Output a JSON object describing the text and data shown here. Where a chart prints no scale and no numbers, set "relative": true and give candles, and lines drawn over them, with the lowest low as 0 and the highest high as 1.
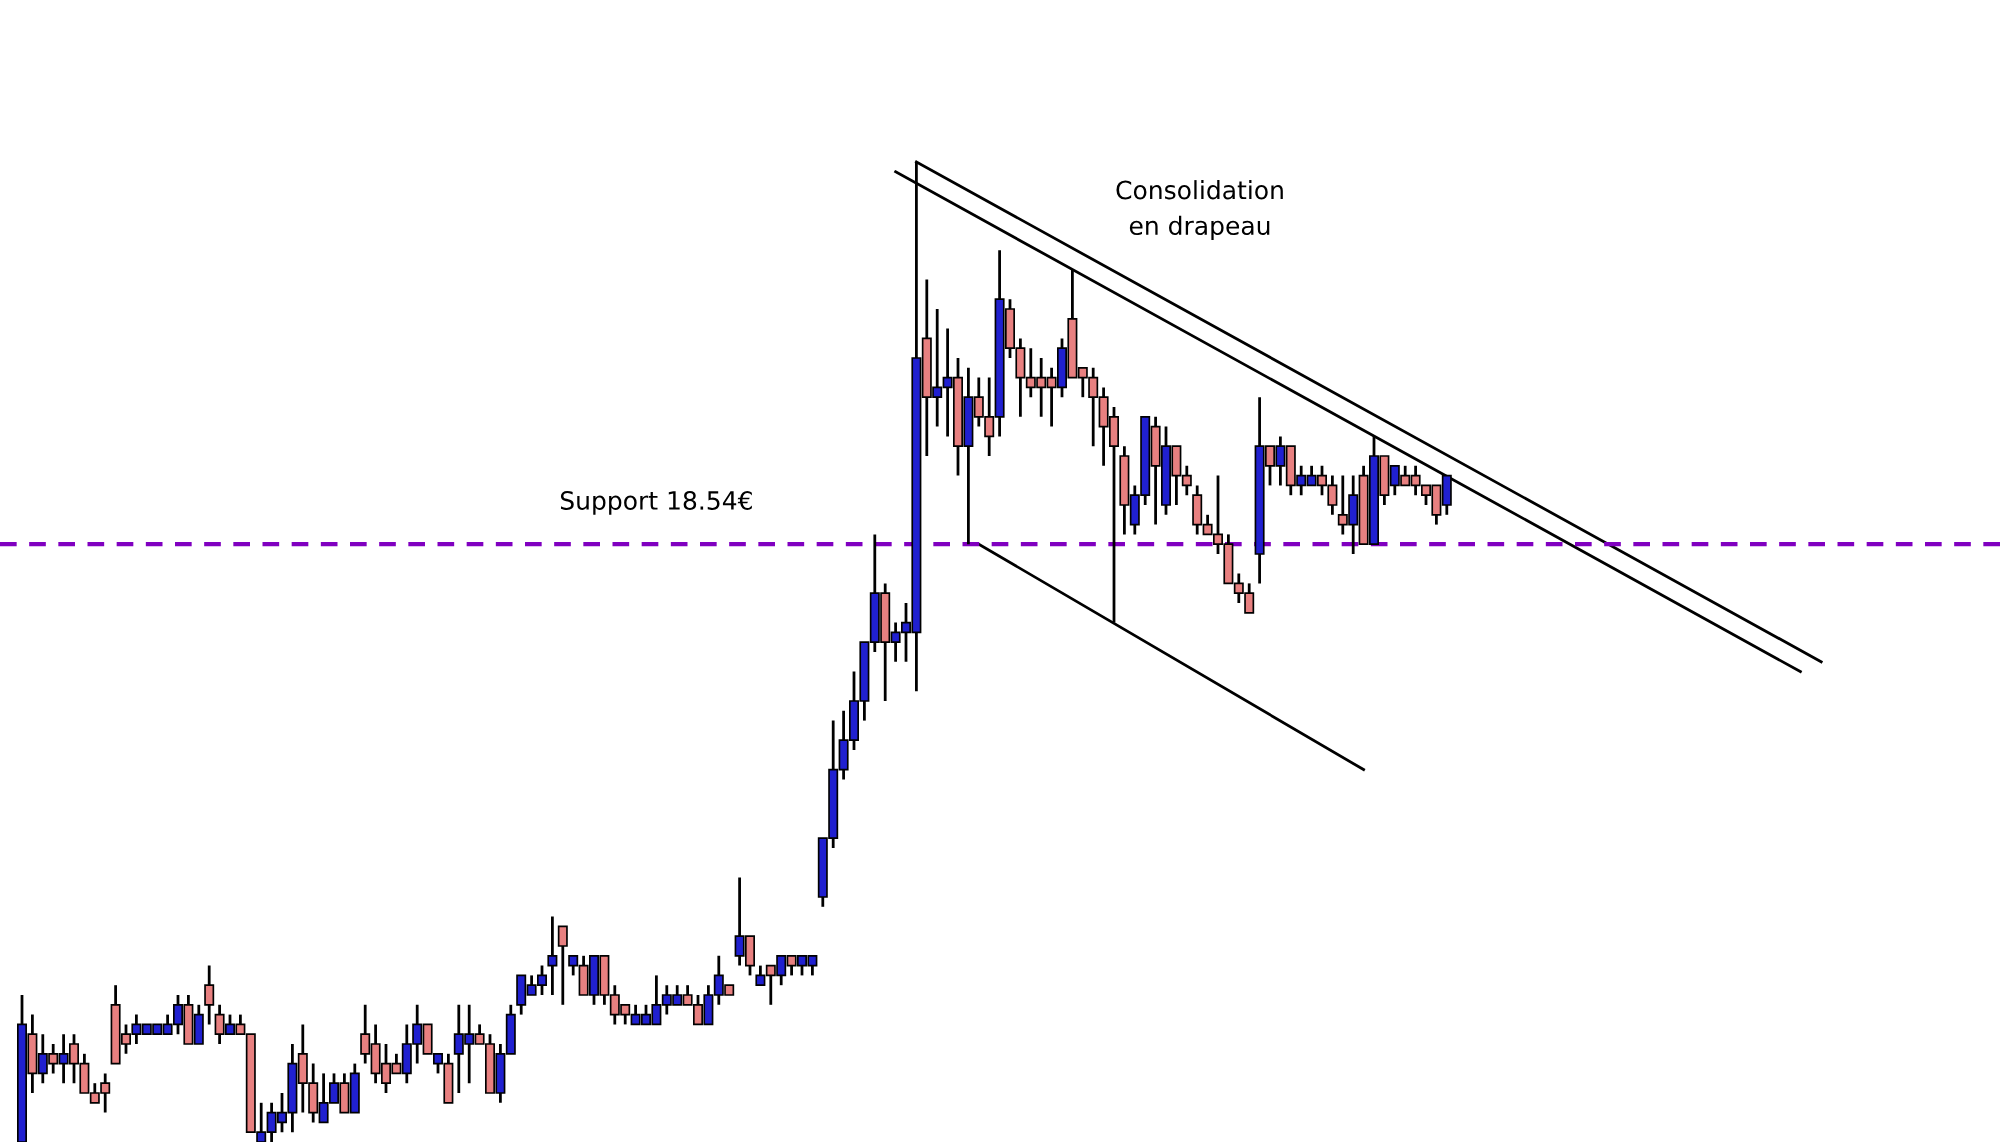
{
  "chart_data": {
    "type": "candlestick",
    "relative": true,
    "categories": [
      null,
      null,
      null,
      null,
      null,
      null,
      null,
      null,
      null,
      null,
      null,
      null,
      null,
      null,
      null,
      null,
      null,
      null,
      null,
      null,
      null,
      null,
      null,
      null,
      null,
      null,
      null,
      null,
      null,
      null,
      null,
      null,
      null,
      null,
      null,
      null,
      null,
      null,
      null,
      null,
      null,
      null,
      null,
      null,
      null,
      null,
      null,
      null,
      null,
      null,
      null,
      null,
      null,
      null,
      null,
      null,
      null,
      null,
      null,
      null,
      null,
      null,
      null,
      null,
      null,
      null,
      null,
      null,
      null,
      null,
      null,
      null,
      null,
      null,
      null,
      null,
      null,
      null,
      null,
      null,
      null,
      null,
      null,
      null,
      null,
      null,
      null,
      null,
      null,
      null,
      null,
      null,
      null,
      null,
      null,
      null,
      null,
      null,
      null,
      null,
      null,
      null,
      null,
      null,
      null,
      null,
      null,
      null,
      null,
      null,
      null,
      null,
      null,
      null,
      null,
      null,
      null,
      null,
      null,
      null,
      null,
      null,
      null,
      null,
      null,
      null,
      null,
      null,
      null,
      null,
      null,
      null,
      null,
      null,
      null,
      null,
      null,
      null,
      null,
      null,
      null,
      null,
      null,
      null,
      null,
      null,
      null,
      null,
      null,
      null,
      null,
      null,
      null,
      null,
      null,
      null,
      null,
      null,
      null,
      null,
      null,
      null,
      null,
      null,
      null,
      null,
      null,
      null,
      null,
      null,
      null,
      null,
      null,
      null,
      null
    ],
    "series": [
      {
        "ohlc": [
          [
            0.0,
            0.15,
            0.0,
            0.12
          ],
          [
            0.11,
            0.13,
            0.05,
            0.07
          ],
          [
            0.07,
            0.11,
            0.06,
            0.09
          ],
          [
            0.09,
            0.1,
            0.07,
            0.08
          ],
          [
            0.08,
            0.11,
            0.06,
            0.09
          ],
          [
            0.1,
            0.11,
            0.06,
            0.08
          ],
          [
            0.08,
            0.09,
            0.05,
            0.05
          ],
          [
            0.05,
            0.06,
            0.04,
            0.04
          ],
          [
            0.06,
            0.07,
            0.03,
            0.05
          ],
          [
            0.14,
            0.16,
            0.08,
            0.08
          ],
          [
            0.11,
            0.12,
            0.09,
            0.1
          ],
          [
            0.11,
            0.13,
            0.1,
            0.12
          ],
          [
            0.11,
            0.12,
            0.11,
            0.12
          ],
          [
            0.11,
            0.12,
            0.11,
            0.12
          ],
          [
            0.11,
            0.13,
            0.11,
            0.12
          ],
          [
            0.12,
            0.15,
            0.11,
            0.14
          ],
          [
            0.14,
            0.15,
            0.1,
            0.1
          ],
          [
            0.1,
            0.14,
            0.1,
            0.13
          ],
          [
            0.16,
            0.18,
            0.12,
            0.14
          ],
          [
            0.13,
            0.14,
            0.1,
            0.11
          ],
          [
            0.11,
            0.13,
            0.11,
            0.12
          ],
          [
            0.12,
            0.13,
            0.11,
            0.11
          ],
          [
            0.11,
            0.11,
            0.01,
            0.01
          ],
          [
            0.0,
            0.04,
            0.0,
            0.01
          ],
          [
            0.01,
            0.04,
            0.0,
            0.03
          ],
          [
            0.02,
            0.05,
            0.01,
            0.03
          ],
          [
            0.03,
            0.1,
            0.01,
            0.08
          ],
          [
            0.09,
            0.12,
            0.03,
            0.06
          ],
          [
            0.06,
            0.08,
            0.02,
            0.03
          ],
          [
            0.02,
            0.07,
            0.02,
            0.04
          ],
          [
            0.04,
            0.07,
            0.04,
            0.06
          ],
          [
            0.06,
            0.07,
            0.03,
            0.03
          ],
          [
            0.03,
            0.08,
            0.03,
            0.07
          ],
          [
            0.11,
            0.14,
            0.08,
            0.09
          ],
          [
            0.1,
            0.12,
            0.06,
            0.07
          ],
          [
            0.08,
            0.1,
            0.05,
            0.06
          ],
          [
            0.08,
            0.09,
            0.07,
            0.07
          ],
          [
            0.07,
            0.12,
            0.06,
            0.1
          ],
          [
            0.1,
            0.14,
            0.08,
            0.12
          ],
          [
            0.12,
            0.12,
            0.09,
            0.09
          ],
          [
            0.08,
            0.09,
            0.07,
            0.09
          ],
          [
            0.08,
            0.09,
            0.04,
            0.04
          ],
          [
            0.09,
            0.14,
            0.05,
            0.11
          ],
          [
            0.1,
            0.14,
            0.06,
            0.11
          ],
          [
            0.11,
            0.12,
            0.1,
            0.1
          ],
          [
            0.1,
            0.11,
            0.05,
            0.05
          ],
          [
            0.05,
            0.1,
            0.04,
            0.09
          ],
          [
            0.09,
            0.14,
            0.09,
            0.13
          ],
          [
            0.14,
            0.17,
            0.13,
            0.17
          ],
          [
            0.15,
            0.17,
            0.15,
            0.16
          ],
          [
            0.16,
            0.18,
            0.15,
            0.17
          ],
          [
            0.18,
            0.23,
            0.15,
            0.19
          ],
          [
            0.22,
            0.22,
            0.14,
            0.2
          ],
          [
            0.18,
            0.19,
            0.17,
            0.19
          ],
          [
            0.18,
            0.19,
            0.15,
            0.15
          ],
          [
            0.15,
            0.19,
            0.14,
            0.19
          ],
          [
            0.19,
            0.19,
            0.14,
            0.15
          ],
          [
            0.15,
            0.16,
            0.12,
            0.13
          ],
          [
            0.14,
            0.14,
            0.12,
            0.13
          ],
          [
            0.12,
            0.14,
            0.12,
            0.13
          ],
          [
            0.12,
            0.14,
            0.12,
            0.13
          ],
          [
            0.12,
            0.17,
            0.12,
            0.14
          ],
          [
            0.14,
            0.16,
            0.13,
            0.15
          ],
          [
            0.14,
            0.16,
            0.14,
            0.15
          ],
          [
            0.15,
            0.16,
            0.14,
            0.14
          ],
          [
            0.14,
            0.15,
            0.12,
            0.12
          ],
          [
            0.12,
            0.16,
            0.12,
            0.15
          ],
          [
            0.15,
            0.19,
            0.14,
            0.17
          ],
          [
            0.16,
            0.16,
            0.15,
            0.15
          ],
          [
            0.19,
            0.27,
            0.18,
            0.21
          ],
          [
            0.21,
            0.21,
            0.17,
            0.18
          ],
          [
            0.16,
            0.18,
            0.16,
            0.17
          ],
          [
            0.18,
            0.18,
            0.14,
            0.17
          ],
          [
            0.17,
            0.19,
            0.16,
            0.19
          ],
          [
            0.19,
            0.19,
            0.17,
            0.18
          ],
          [
            0.18,
            0.19,
            0.17,
            0.19
          ],
          [
            0.18,
            0.19,
            0.17,
            0.19
          ],
          [
            0.25,
            0.31,
            0.24,
            0.31
          ],
          [
            0.31,
            0.43,
            0.3,
            0.38
          ],
          [
            0.38,
            0.44,
            0.37,
            0.41
          ],
          [
            0.41,
            0.48,
            0.4,
            0.45
          ],
          [
            0.45,
            0.51,
            0.43,
            0.51
          ],
          [
            0.51,
            0.62,
            0.5,
            0.56
          ],
          [
            0.56,
            0.57,
            0.45,
            0.51
          ],
          [
            0.51,
            0.53,
            0.49,
            0.52
          ],
          [
            0.52,
            0.55,
            0.49,
            0.53
          ],
          [
            0.52,
            1.0,
            0.46,
            0.8
          ],
          [
            0.82,
            0.88,
            0.7,
            0.76
          ],
          [
            0.76,
            0.85,
            0.73,
            0.77
          ],
          [
            0.77,
            0.83,
            0.72,
            0.78
          ],
          [
            0.78,
            0.8,
            0.68,
            0.71
          ],
          [
            0.71,
            0.79,
            0.61,
            0.76
          ],
          [
            0.76,
            0.78,
            0.73,
            0.74
          ],
          [
            0.74,
            0.78,
            0.7,
            0.72
          ],
          [
            0.74,
            0.91,
            0.72,
            0.86
          ],
          [
            0.85,
            0.86,
            0.8,
            0.81
          ],
          [
            0.81,
            0.82,
            0.74,
            0.78
          ],
          [
            0.78,
            0.81,
            0.76,
            0.77
          ],
          [
            0.78,
            0.8,
            0.74,
            0.77
          ],
          [
            0.78,
            0.79,
            0.73,
            0.77
          ],
          [
            0.77,
            0.82,
            0.76,
            0.81
          ],
          [
            0.84,
            0.89,
            0.78,
            0.78
          ],
          [
            0.79,
            0.79,
            0.76,
            0.78
          ],
          [
            0.78,
            0.79,
            0.71,
            0.76
          ],
          [
            0.76,
            0.77,
            0.69,
            0.73
          ],
          [
            0.74,
            0.75,
            0.53,
            0.71
          ],
          [
            0.7,
            0.71,
            0.62,
            0.65
          ],
          [
            0.63,
            0.67,
            0.62,
            0.66
          ],
          [
            0.66,
            0.74,
            0.65,
            0.74
          ],
          [
            0.73,
            0.74,
            0.63,
            0.69
          ],
          [
            0.65,
            0.73,
            0.64,
            0.71
          ],
          [
            0.71,
            0.71,
            0.65,
            0.68
          ],
          [
            0.68,
            0.69,
            0.66,
            0.67
          ],
          [
            0.66,
            0.67,
            0.62,
            0.63
          ],
          [
            0.63,
            0.64,
            0.62,
            0.62
          ],
          [
            0.62,
            0.68,
            0.6,
            0.61
          ],
          [
            0.61,
            0.62,
            0.57,
            0.57
          ],
          [
            0.57,
            0.58,
            0.55,
            0.56
          ],
          [
            0.56,
            0.57,
            0.54,
            0.54
          ],
          [
            0.6,
            0.76,
            0.57,
            0.71
          ],
          [
            0.71,
            0.71,
            0.67,
            0.69
          ],
          [
            0.69,
            0.72,
            0.67,
            0.71
          ],
          [
            0.71,
            0.71,
            0.66,
            0.67
          ],
          [
            0.67,
            0.69,
            0.66,
            0.68
          ],
          [
            0.67,
            0.69,
            0.67,
            0.68
          ],
          [
            0.68,
            0.69,
            0.66,
            0.67
          ],
          [
            0.67,
            0.68,
            0.64,
            0.65
          ],
          [
            0.64,
            0.68,
            0.62,
            0.63
          ],
          [
            0.63,
            0.68,
            0.6,
            0.66
          ],
          [
            0.68,
            0.69,
            0.61,
            0.61
          ],
          [
            0.61,
            0.72,
            0.61,
            0.7
          ],
          [
            0.7,
            0.7,
            0.65,
            0.66
          ],
          [
            0.67,
            0.69,
            0.66,
            0.69
          ],
          [
            0.68,
            0.69,
            0.67,
            0.67
          ],
          [
            0.68,
            0.69,
            0.66,
            0.67
          ],
          [
            0.67,
            0.67,
            0.65,
            0.66
          ],
          [
            0.67,
            0.67,
            0.63,
            0.64
          ],
          [
            0.65,
            0.68,
            0.64,
            0.68
          ],
          null,
          null,
          null,
          null,
          null,
          null,
          null,
          null,
          null,
          null,
          null,
          null,
          null,
          null,
          null,
          null,
          null,
          null,
          null,
          null,
          null,
          null,
          null,
          null,
          null,
          null,
          null,
          null,
          null,
          null,
          null,
          null,
          null,
          null,
          null,
          null,
          null
        ],
        "colors": [
          "#2020d0",
          "#e88080",
          "#2020d0",
          "#e88080",
          "#2020d0",
          "#e88080",
          "#e88080",
          "#e88080",
          "#e88080",
          "#e88080",
          "#e88080",
          "#2020d0",
          "#2020d0",
          "#2020d0",
          "#2020d0",
          "#2020d0",
          "#e88080",
          "#2020d0",
          "#e88080",
          "#e88080",
          "#2020d0",
          "#e88080",
          "#e88080",
          "#2020d0",
          "#2020d0",
          "#2020d0",
          "#2020d0",
          "#e88080",
          "#e88080",
          "#2020d0",
          "#2020d0",
          "#e88080",
          "#2020d0",
          "#e88080",
          "#e88080",
          "#e88080",
          "#e88080",
          "#2020d0",
          "#2020d0",
          "#e88080",
          "#2020d0",
          "#e88080",
          "#2020d0",
          "#2020d0",
          "#e88080",
          "#e88080",
          "#2020d0",
          "#2020d0",
          "#2020d0",
          "#2020d0",
          "#2020d0",
          "#2020d0",
          "#e88080",
          "#2020d0",
          "#e88080",
          "#2020d0",
          "#e88080",
          "#e88080",
          "#e88080",
          "#2020d0",
          "#2020d0",
          "#2020d0",
          "#2020d0",
          "#2020d0",
          "#e88080",
          "#e88080",
          "#2020d0",
          "#2020d0",
          "#e88080",
          "#2020d0",
          "#e88080",
          "#2020d0",
          "#e88080",
          "#2020d0",
          "#e88080",
          "#2020d0",
          "#2020d0",
          "#2020d0",
          "#2020d0",
          "#2020d0",
          "#2020d0",
          "#2020d0",
          "#2020d0",
          "#e88080",
          "#2020d0",
          "#2020d0",
          "#2020d0",
          "#e88080",
          "#2020d0",
          "#2020d0",
          "#e88080",
          "#2020d0",
          "#e88080",
          "#e88080",
          "#2020d0",
          "#e88080",
          "#e88080",
          "#e88080",
          "#e88080",
          "#e88080",
          "#2020d0",
          "#e88080",
          "#e88080",
          "#e88080",
          "#e88080",
          "#e88080",
          "#e88080",
          "#2020d0",
          "#2020d0",
          "#e88080",
          "#2020d0",
          "#e88080",
          "#e88080",
          "#e88080",
          "#e88080",
          "#e88080",
          "#e88080",
          "#e88080",
          "#e88080",
          "#2020d0",
          "#e88080",
          "#2020d0",
          "#e88080",
          "#2020d0",
          "#2020d0",
          "#e88080",
          "#e88080",
          "#e88080",
          "#2020d0",
          "#e88080",
          "#2020d0",
          "#e88080",
          "#2020d0",
          "#e88080",
          "#e88080",
          "#e88080",
          "#e88080",
          "#2020d0",
          null,
          null,
          null,
          null,
          null,
          null,
          null,
          null,
          null,
          null,
          null,
          null,
          null,
          null,
          null,
          null,
          null,
          null,
          null,
          null,
          null,
          null,
          null,
          null,
          null,
          null,
          null,
          null,
          null,
          null,
          null,
          null,
          null,
          null,
          null,
          null,
          null
        ]
      },
      {
        "type": "line",
        "color": "#000000",
        "values": [
          null,
          null,
          null,
          null,
          null,
          null,
          null,
          null,
          null,
          null,
          null,
          null,
          null,
          null,
          null,
          null,
          null,
          null,
          null,
          null,
          null,
          null,
          null,
          null,
          null,
          null,
          null,
          null,
          null,
          null,
          null,
          null,
          null,
          null,
          null,
          null,
          null,
          null,
          null,
          null,
          null,
          null,
          null,
          null,
          null,
          null,
          null,
          null,
          null,
          null,
          null,
          null,
          null,
          null,
          null,
          null,
          null,
          null,
          null,
          null,
          null,
          null,
          null,
          null,
          null,
          null,
          null,
          null,
          null,
          null,
          null,
          null,
          null,
          null,
          null,
          null,
          null,
          null,
          null,
          null,
          null,
          null,
          null,
          null,
          null,
          null,
          1.0,
          null,
          null,
          null,
          null,
          null,
          null,
          null,
          null,
          null,
          null,
          null,
          null,
          null,
          null,
          null,
          null,
          null,
          null,
          null,
          null,
          null,
          null,
          null,
          null,
          null,
          null,
          null,
          null,
          null,
          null,
          null,
          null,
          null,
          null,
          null,
          null,
          null,
          null,
          null,
          null,
          null,
          null,
          null,
          null,
          null,
          null,
          null,
          null,
          null,
          null,
          null,
          null,
          null,
          null,
          null,
          null,
          null,
          null,
          null,
          null,
          null,
          null,
          null,
          null,
          null,
          null,
          null,
          null,
          null,
          null,
          null,
          null,
          null,
          null,
          null,
          null,
          null,
          null,
          null,
          null,
          null,
          null,
          null,
          null,
          null,
          null,
          0.49,
          null
        ]
      },
      {
        "type": "line",
        "color": "#000000",
        "values": [
          null,
          null,
          null,
          null,
          null,
          null,
          null,
          null,
          null,
          null,
          null,
          null,
          null,
          null,
          null,
          null,
          null,
          null,
          null,
          null,
          null,
          null,
          null,
          null,
          null,
          null,
          null,
          null,
          null,
          null,
          null,
          null,
          null,
          null,
          null,
          null,
          null,
          null,
          null,
          null,
          null,
          null,
          null,
          null,
          null,
          null,
          null,
          null,
          null,
          null,
          null,
          null,
          null,
          null,
          null,
          null,
          null,
          null,
          null,
          null,
          null,
          null,
          null,
          null,
          null,
          null,
          null,
          null,
          null,
          null,
          null,
          null,
          null,
          null,
          null,
          null,
          null,
          null,
          null,
          null,
          null,
          null,
          null,
          null,
          0.99,
          null,
          null,
          null,
          null,
          null,
          null,
          null,
          null,
          null,
          null,
          null,
          null,
          null,
          null,
          null,
          null,
          null,
          null,
          null,
          null,
          null,
          null,
          null,
          null,
          null,
          null,
          null,
          null,
          null,
          null,
          null,
          null,
          null,
          null,
          null,
          null,
          null,
          null,
          null,
          null,
          null,
          null,
          null,
          null,
          null,
          null,
          null,
          null,
          null,
          null,
          null,
          null,
          null,
          null,
          null,
          null,
          null,
          null,
          null,
          null,
          null,
          null,
          null,
          null,
          null,
          null,
          null,
          null,
          null,
          null,
          null,
          null,
          null,
          null,
          null,
          null,
          null,
          null,
          null,
          null,
          null,
          null,
          null,
          null,
          null,
          null,
          0.48,
          null,
          null,
          null
        ]
      },
      {
        "type": "line",
        "color": "#000000",
        "values": [
          null,
          null,
          null,
          null,
          null,
          null,
          null,
          null,
          null,
          null,
          null,
          null,
          null,
          null,
          null,
          null,
          null,
          null,
          null,
          null,
          null,
          null,
          null,
          null,
          null,
          null,
          null,
          null,
          null,
          null,
          null,
          null,
          null,
          null,
          null,
          null,
          null,
          null,
          null,
          null,
          null,
          null,
          null,
          null,
          null,
          null,
          null,
          null,
          null,
          null,
          null,
          null,
          null,
          null,
          null,
          null,
          null,
          null,
          null,
          null,
          null,
          null,
          null,
          null,
          null,
          null,
          null,
          null,
          null,
          null,
          null,
          null,
          null,
          null,
          null,
          null,
          null,
          null,
          null,
          null,
          null,
          null,
          null,
          null,
          null,
          null,
          null,
          null,
          null,
          null,
          null,
          null,
          0.61,
          null,
          null,
          null,
          null,
          null,
          null,
          null,
          null,
          null,
          null,
          null,
          null,
          null,
          null,
          null,
          null,
          null,
          null,
          null,
          null,
          null,
          null,
          null,
          null,
          null,
          null,
          null,
          null,
          null,
          null,
          null,
          null,
          null,
          null,
          null,
          null,
          0.38,
          null,
          null,
          null,
          null,
          null,
          null,
          null,
          null,
          null,
          null,
          null,
          null,
          null,
          null,
          null,
          null,
          null,
          null,
          null,
          null,
          null,
          null,
          null,
          null,
          null,
          null,
          null,
          null,
          null,
          null,
          null,
          null,
          null,
          null,
          null,
          null,
          null,
          null,
          null,
          null,
          null,
          null,
          null,
          null,
          null
        ]
      }
    ],
    "ref_lines": [
      {
        "axis": "y",
        "value": 0.61,
        "label": "Support 18.54€",
        "color": "#8000c0",
        "line_style": "dashed"
      }
    ],
    "annotations": [
      "Consolidation en drapeau"
    ]
  }
}
